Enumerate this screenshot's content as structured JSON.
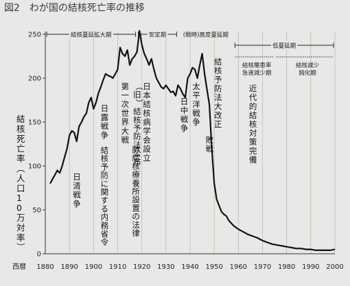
{
  "chart_data": {
    "type": "line",
    "title": "図2　わが国の結核死亡率の推移",
    "ylabel": "結核死亡率（人口10万対率）",
    "xlabel": "西暦",
    "x_ticks": [
      1880,
      1890,
      1900,
      1910,
      1920,
      1930,
      1940,
      1950,
      1960,
      1970,
      1980,
      1990,
      2000
    ],
    "y_ticks": [
      0,
      50,
      100,
      150,
      200,
      250
    ],
    "xlim": [
      1880,
      2000
    ],
    "ylim": [
      0,
      250
    ],
    "grid": "vertical",
    "series": [
      {
        "x": [
          1882,
          1883,
          1884,
          1885,
          1886,
          1887,
          1888,
          1889,
          1890,
          1891,
          1892,
          1893,
          1894,
          1895,
          1896,
          1897,
          1898,
          1899,
          1900,
          1901,
          1902,
          1903,
          1904,
          1905,
          1906,
          1907,
          1908,
          1909,
          1910,
          1911,
          1912,
          1913,
          1914,
          1915,
          1916,
          1917,
          1918,
          1919,
          1920,
          1921,
          1922,
          1923,
          1924,
          1925,
          1926,
          1927,
          1928,
          1929,
          1930,
          1931,
          1932,
          1933,
          1934,
          1935,
          1936,
          1937,
          1938,
          1939,
          1940,
          1941,
          1942,
          1943,
          1944,
          1945,
          1946,
          1947,
          1948,
          1949,
          1950,
          1951,
          1952,
          1953,
          1954,
          1955,
          1956,
          1957,
          1958,
          1959,
          1960,
          1962,
          1964,
          1966,
          1968,
          1970,
          1972,
          1974,
          1976,
          1978,
          1980,
          1982,
          1984,
          1986,
          1988,
          1990,
          1992,
          1994,
          1996,
          1998,
          2000
        ],
        "y": [
          80,
          85,
          90,
          95,
          92,
          100,
          110,
          120,
          135,
          140,
          138,
          128,
          145,
          150,
          156,
          160,
          172,
          178,
          165,
          172,
          183,
          190,
          198,
          205,
          203,
          202,
          200,
          205,
          210,
          235,
          228,
          225,
          232,
          215,
          222,
          225,
          230,
          254,
          238,
          228,
          222,
          215,
          222,
          210,
          200,
          195,
          190,
          188,
          192,
          188,
          184,
          185,
          180,
          192,
          188,
          182,
          178,
          200,
          205,
          212,
          210,
          200,
          215,
          228,
          205,
          187,
          170,
          120,
          80,
          62,
          55,
          48,
          45,
          43,
          38,
          35,
          32,
          30,
          28,
          25,
          22,
          20,
          18,
          15,
          13,
          11,
          10,
          9,
          8,
          7,
          6,
          6,
          5,
          5,
          4,
          4,
          4,
          4,
          5
        ]
      }
    ],
    "period_labels": [
      "結核蔓延拡大期",
      "安定期",
      "(戦時)",
      "高度蔓延期",
      "低蔓延期",
      "結核罹患率急速減少期",
      "結核減少鈍化期"
    ],
    "annotations": [
      "日清戦争",
      "日露戦争",
      "結核予防に関する内務省令",
      "第一次世界大戦",
      "(旧)結核予防法公布",
      "肺結核療養所設置の法律",
      "日本結核病学会設立",
      "日中戦争",
      "太平洋戦争",
      "敗戦",
      "結核予防法大改正",
      "近代的結核対策完備"
    ]
  }
}
